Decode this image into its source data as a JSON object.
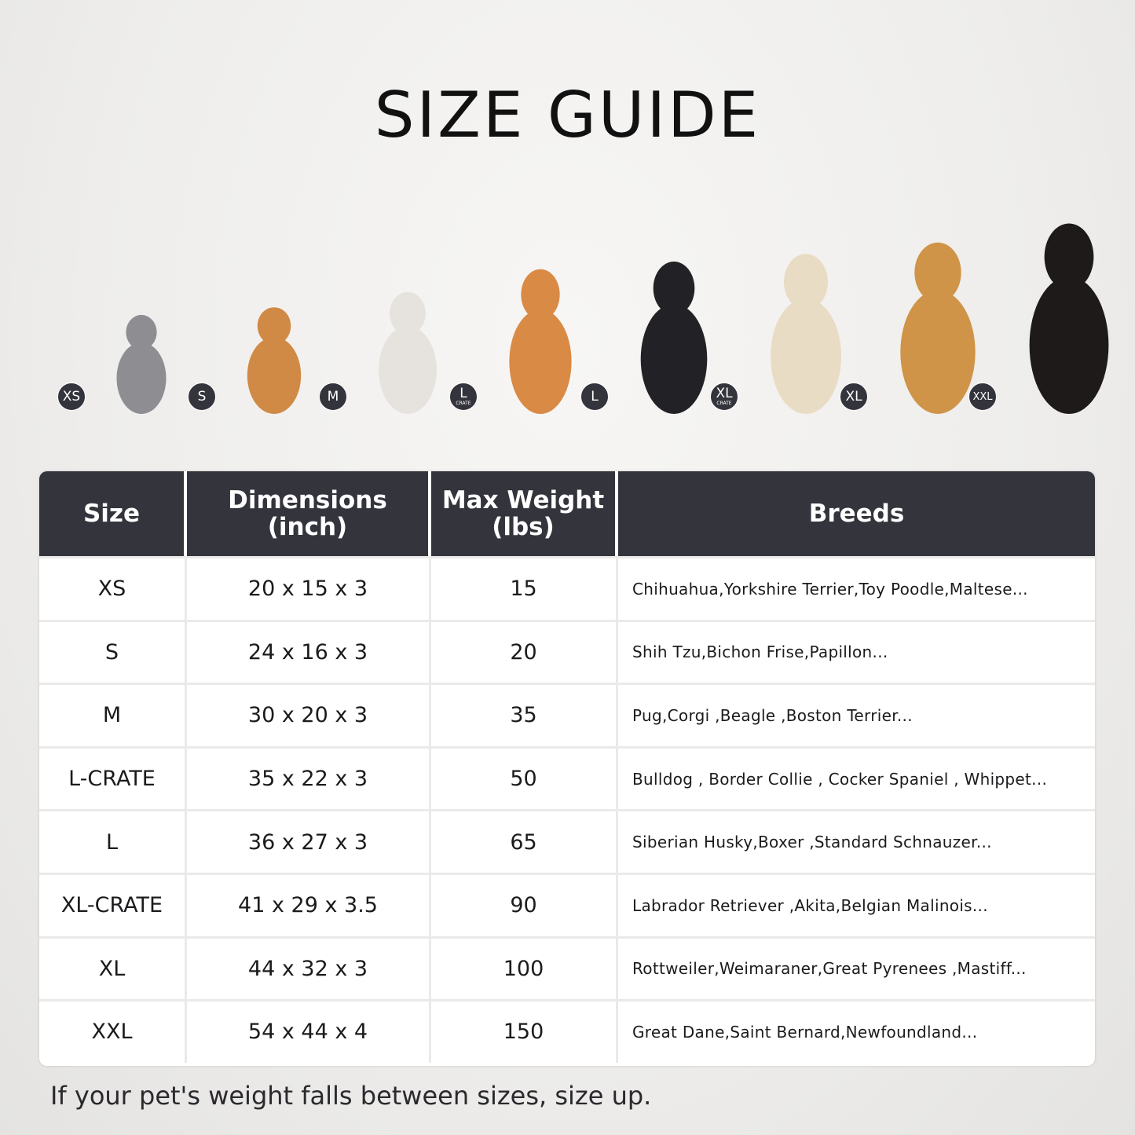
{
  "title": "SIZE GUIDE",
  "pets": [
    {
      "badge": "XS",
      "sub": "",
      "animal": "cat",
      "color": "#8e8d92"
    },
    {
      "badge": "S",
      "sub": "",
      "animal": "pomeranian",
      "color": "#d08a45"
    },
    {
      "badge": "M",
      "sub": "",
      "animal": "french-bulldog",
      "color": "#e6e3df"
    },
    {
      "badge": "L",
      "sub": "CRATE",
      "animal": "shiba-inu",
      "color": "#d98a45"
    },
    {
      "badge": "L",
      "sub": "",
      "animal": "border-collie",
      "color": "#222226"
    },
    {
      "badge": "XL",
      "sub": "CRATE",
      "animal": "labrador",
      "color": "#e8dcc4"
    },
    {
      "badge": "XL",
      "sub": "",
      "animal": "golden-retriever",
      "color": "#cf9448"
    },
    {
      "badge": "XXL",
      "sub": "",
      "animal": "doberman",
      "color": "#1e1a1a"
    }
  ],
  "table": {
    "headers": [
      "Size",
      "Dimensions\n(inch)",
      "Max Weight\n(lbs)",
      "Breeds"
    ],
    "rows": [
      [
        "XS",
        "20 x 15 x 3",
        "15",
        "Chihuahua,Yorkshire Terrier,Toy Poodle,Maltese..."
      ],
      [
        "S",
        "24 x 16 x 3",
        "20",
        "Shih Tzu,Bichon Frise,Papillon..."
      ],
      [
        "M",
        "30 x 20 x 3",
        "35",
        "Pug,Corgi ,Beagle ,Boston Terrier..."
      ],
      [
        "L-CRATE",
        "35 x 22 x 3",
        "50",
        "Bulldog , Border Collie , Cocker Spaniel , Whippet..."
      ],
      [
        "L",
        "36 x 27 x 3",
        "65",
        "Siberian Husky,Boxer ,Standard Schnauzer..."
      ],
      [
        "XL-CRATE",
        "41 x 29 x 3.5",
        "90",
        "Labrador Retriever ,Akita,Belgian Malinois..."
      ],
      [
        "XL",
        "44 x 32 x 3",
        "100",
        "Rottweiler,Weimaraner,Great Pyrenees ,Mastiff..."
      ],
      [
        "XXL",
        "54 x 44 x 4",
        "150",
        "Great Dane,Saint Bernard,Newfoundland..."
      ]
    ]
  },
  "colors": {
    "header_bg": "#33343c",
    "badge_bg": "#33343c"
  },
  "note": "If your pet's weight falls between sizes, size up."
}
